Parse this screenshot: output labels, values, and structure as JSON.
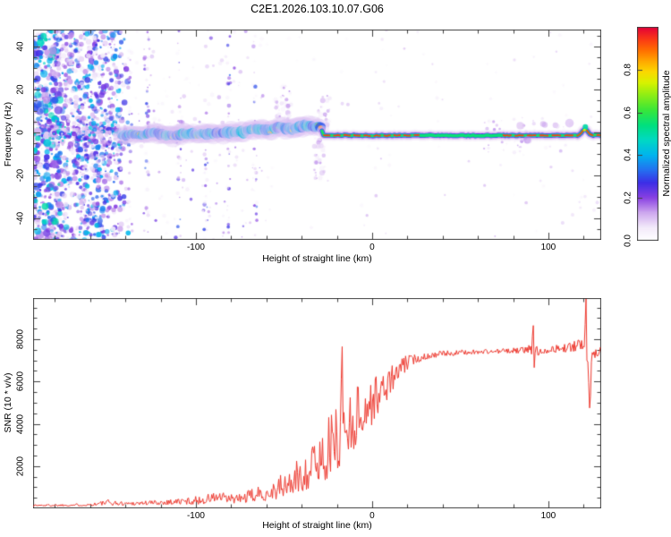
{
  "title": "C2E1.2026.103.10.07.G06",
  "style": {
    "frame_color": "#3f3f3f",
    "text_color": "#000000",
    "background": "#ffffff",
    "snr_line_color": "#ee3a30"
  },
  "panels": {
    "spectrogram": {
      "xlabel": "Height of straight line (km)",
      "ylabel": "Frequency (Hz)",
      "xlim": [
        -192.4,
        130
      ],
      "ylim": [
        -50,
        48
      ],
      "x_major_ticks": [
        -100,
        0,
        100
      ],
      "x_major_labels": [
        "-100",
        "0",
        "100"
      ],
      "x_minor_step": 20,
      "y_major_ticks": [
        -40,
        -20,
        0,
        20,
        40
      ],
      "y_major_labels": [
        "-40",
        "-20",
        "0",
        "20",
        "40"
      ],
      "y_minor_step": 5
    },
    "snr": {
      "xlabel": "Height of straight line (km)",
      "ylabel": "SNR (10 * v/v)",
      "xlim": [
        -192.4,
        130
      ],
      "ylim": [
        0,
        9950
      ],
      "x_major_ticks": [
        -100,
        0,
        100
      ],
      "x_major_labels": [
        "-100",
        "0",
        "100"
      ],
      "x_minor_step": 20,
      "y_major_ticks": [
        2000,
        4000,
        6000,
        8000
      ],
      "y_major_labels": [
        "2000",
        "4000",
        "6000",
        "8000"
      ],
      "y_minor_step": 500
    }
  },
  "colorbar": {
    "label": "Normalized spectral amplitude",
    "range": [
      0,
      1
    ],
    "tick_values": [
      0,
      0.2,
      0.4,
      0.6,
      0.8
    ],
    "tick_labels": [
      "0.0",
      "0.2",
      "0.4",
      "0.6",
      "0.8"
    ],
    "stops": [
      [
        0.0,
        "#ffffff"
      ],
      [
        0.06,
        "#f3eafa"
      ],
      [
        0.13,
        "#cda6ee"
      ],
      [
        0.2,
        "#8840e2"
      ],
      [
        0.27,
        "#3c2ee6"
      ],
      [
        0.33,
        "#2470f0"
      ],
      [
        0.4,
        "#00b4ee"
      ],
      [
        0.47,
        "#00d8c4"
      ],
      [
        0.54,
        "#00e07e"
      ],
      [
        0.61,
        "#38e63a"
      ],
      [
        0.68,
        "#8ced16"
      ],
      [
        0.74,
        "#d8f200"
      ],
      [
        0.79,
        "#fbd800"
      ],
      [
        0.84,
        "#ffa800"
      ],
      [
        0.89,
        "#ff7000"
      ],
      [
        0.94,
        "#fb3c14"
      ],
      [
        1.0,
        "#e40038"
      ]
    ]
  },
  "chart_data": [
    {
      "type": "heatmap",
      "title": "C2E1.2026.103.10.07.G06",
      "xlabel": "Height of straight line (km)",
      "ylabel": "Frequency (Hz)",
      "xlim": [
        -192.4,
        130
      ],
      "ylim": [
        -50,
        48
      ],
      "colorbar_label": "Normalized spectral amplitude",
      "colorbar_range": [
        0,
        1
      ],
      "description": "Radar Doppler spectrogram: dense purple speckle noise at left, sparse streaky noise mid-left, and a meteor-echo trace near 0 Hz that is a wandering blue/cyan blob band from -142 to -28 km, becoming a thin flat line with red/green high-amplitude core from -28 to 130 km.",
      "echo_trace": {
        "points_km_hz": [
          [
            -142,
            -1.8
          ],
          [
            -136,
            -0.5
          ],
          [
            -130,
            -1.5
          ],
          [
            -124,
            0
          ],
          [
            -118,
            -1
          ],
          [
            -112,
            -1.5
          ],
          [
            -106,
            0
          ],
          [
            -100,
            -0.8
          ],
          [
            -94,
            0.2
          ],
          [
            -88,
            -0.6
          ],
          [
            -82,
            0.4
          ],
          [
            -76,
            0.2
          ],
          [
            -70,
            1.2
          ],
          [
            -64,
            2.0
          ],
          [
            -58,
            1.2
          ],
          [
            -52,
            2.4
          ],
          [
            -46,
            1.6
          ],
          [
            -40,
            3.0
          ],
          [
            -36,
            3.6
          ],
          [
            -32,
            2.6
          ],
          [
            -30,
            3.2
          ],
          [
            -28.5,
            1.0
          ],
          [
            -28,
            -1.4
          ],
          [
            -20,
            -1.2
          ],
          [
            0,
            -1.4
          ],
          [
            30,
            -1.3
          ],
          [
            60,
            -1.4
          ],
          [
            90,
            -1.3
          ],
          [
            110,
            -1.4
          ],
          [
            117,
            -1.3
          ],
          [
            119.5,
            0.6
          ],
          [
            121,
            1.8
          ],
          [
            122.5,
            0.2
          ],
          [
            124,
            -1.2
          ],
          [
            130,
            -1.2
          ]
        ],
        "blob_segment_km": [
          -142,
          -28.5
        ],
        "line_segment_km": [
          -28.5,
          130
        ],
        "red_core_segments_km": [
          [
            -28.2,
            26.5
          ],
          [
            74,
            130
          ]
        ],
        "green_core_segment_km": [
          26.5,
          74
        ],
        "purple_lumps_km_hz": [
          [
            84,
            3.2
          ],
          [
            97,
            4.0
          ],
          [
            104,
            3.4
          ],
          [
            112,
            4.4
          ],
          [
            88,
            -3.4
          ]
        ],
        "plumes": [
          {
            "km": [
              -56,
              -46
            ],
            "hz": [
              4,
              22
            ],
            "n": 35
          },
          {
            "km": [
              -33,
              -27
            ],
            "hz": [
              -22,
              2
            ],
            "n": 30
          },
          {
            "km": [
              -31,
              -24
            ],
            "hz": [
              3,
              18
            ],
            "n": 22
          }
        ]
      },
      "noise_regions": [
        {
          "name": "dense-left",
          "km": [
            -192.4,
            -138
          ],
          "hz": [
            -50,
            48
          ],
          "blobs": 1500
        },
        {
          "name": "streaky-mid",
          "km": [
            -138,
            -55
          ],
          "hz": [
            -50,
            48
          ],
          "blobs": 300,
          "streak_centers_km": [
            -137.6,
            -127.4,
            -109.6,
            -94.4,
            -81.7,
            -66.5
          ]
        },
        {
          "name": "sparse-right",
          "km": [
            -55,
            130
          ],
          "hz": [
            -50,
            48
          ],
          "blobs": 90
        }
      ]
    },
    {
      "type": "line",
      "xlabel": "Height of straight line (km)",
      "ylabel": "SNR (10 * v/v)",
      "xlim": [
        -192.4,
        130
      ],
      "ylim": [
        0,
        9950
      ],
      "legend": "none",
      "grid": false,
      "series": [
        {
          "name": "SNR",
          "color": "#ee3a30",
          "profile_points_km_value_noise": [
            [
              -192,
              140,
              70
            ],
            [
              -175,
              150,
              80
            ],
            [
              -160,
              170,
              90
            ],
            [
              -150,
              260,
              220
            ],
            [
              -143,
              220,
              140
            ],
            [
              -133,
              240,
              160
            ],
            [
              -123,
              260,
              180
            ],
            [
              -113,
              300,
              220
            ],
            [
              -103,
              330,
              260
            ],
            [
              -95,
              380,
              320
            ],
            [
              -88,
              520,
              430
            ],
            [
              -82,
              420,
              330
            ],
            [
              -75,
              430,
              340
            ],
            [
              -68,
              560,
              470
            ],
            [
              -61,
              680,
              580
            ],
            [
              -54,
              850,
              760
            ],
            [
              -48,
              1050,
              950
            ],
            [
              -42,
              1350,
              1200
            ],
            [
              -36,
              1750,
              1500
            ],
            [
              -30,
              2150,
              1800
            ],
            [
              -25,
              2600,
              2100
            ],
            [
              -20,
              3100,
              2400
            ],
            [
              -15,
              3700,
              2600
            ],
            [
              -10,
              4100,
              2300
            ],
            [
              -5,
              4500,
              2000
            ],
            [
              0,
              4900,
              1700
            ],
            [
              5,
              5400,
              1400
            ],
            [
              10,
              5900,
              1050
            ],
            [
              15,
              6400,
              780
            ],
            [
              20,
              6850,
              520
            ],
            [
              25,
              7050,
              360
            ],
            [
              30,
              7180,
              250
            ],
            [
              40,
              7300,
              200
            ],
            [
              55,
              7380,
              170
            ],
            [
              70,
              7420,
              170
            ],
            [
              84,
              7450,
              210
            ],
            [
              90,
              7520,
              280
            ],
            [
              93,
              7380,
              420
            ],
            [
              98,
              7470,
              240
            ],
            [
              105,
              7520,
              280
            ],
            [
              112,
              7580,
              330
            ],
            [
              118,
              7660,
              420
            ],
            [
              121,
              8000,
              700
            ],
            [
              123,
              6900,
              1300
            ],
            [
              126,
              7250,
              550
            ],
            [
              130,
              7550,
              320
            ]
          ],
          "spikes_km_value": [
            [
              -16.5,
              7650
            ],
            [
              92,
              8650
            ],
            [
              122,
              9920
            ],
            [
              123.8,
              4750
            ]
          ]
        }
      ]
    }
  ]
}
